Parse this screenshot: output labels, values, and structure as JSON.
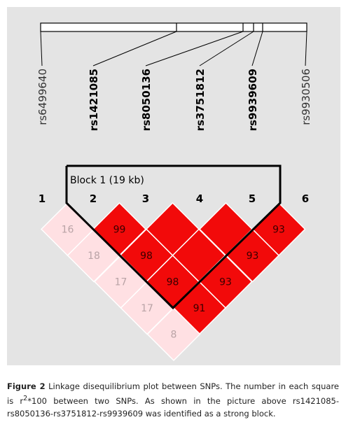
{
  "figure": {
    "snps": [
      {
        "number": 1,
        "name": "rs6499640"
      },
      {
        "number": 2,
        "name": "rs1421085"
      },
      {
        "number": 3,
        "name": "rs8050136"
      },
      {
        "number": 4,
        "name": "rs3751812"
      },
      {
        "number": 5,
        "name": "rs9939609"
      },
      {
        "number": 6,
        "name": "rs9930506"
      }
    ],
    "block_label": "Block 1 (19 kb)",
    "cells": [
      [
        {
          "label": "16",
          "color": "#ffe0e3"
        },
        {
          "label": "99",
          "color": "#f20a0a"
        },
        {
          "label": null,
          "color": "#f20a0a"
        },
        {
          "label": null,
          "color": "#f20a0a"
        },
        {
          "label": "93",
          "color": "#f20a0a"
        }
      ],
      [
        {
          "label": "18",
          "color": "#ffe0e3"
        },
        {
          "label": "98",
          "color": "#f20a0a"
        },
        {
          "label": null,
          "color": "#f20a0a"
        },
        {
          "label": "93",
          "color": "#f20a0a"
        }
      ],
      [
        {
          "label": "17",
          "color": "#ffe0e3"
        },
        {
          "label": "98",
          "color": "#f20a0a"
        },
        {
          "label": "93",
          "color": "#f20a0a"
        }
      ],
      [
        {
          "label": "17",
          "color": "#ffe0e3"
        },
        {
          "label": "91",
          "color": "#f20a0a"
        }
      ],
      [
        {
          "label": "8",
          "color": "#ffe0e3"
        }
      ]
    ]
  },
  "caption": {
    "label": "Figure 2",
    "text_before": "Linkage disequilibrium plot between SNPs. The number in each square is r",
    "superscript": "2",
    "text_after": "*100 between two SNPs. As shown in the picture above rs1421085-rs8050136-rs3751812-rs9939609 was identified as a strong block."
  }
}
